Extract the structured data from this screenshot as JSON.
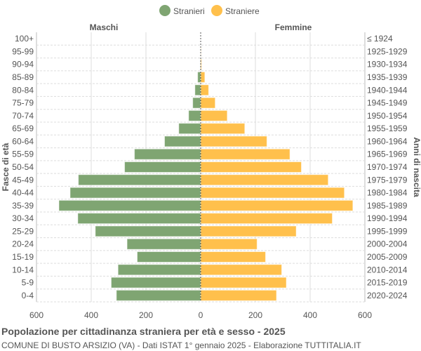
{
  "chart_data": {
    "type": "bar",
    "orientation": "horizontal-pyramid",
    "title": "Popolazione per cittadinanza straniera per età e sesso - 2025",
    "subtitle": "COMUNE DI BUSTO ARSIZIO (VA) - Dati ISTAT 1° gennaio 2025 - Elaborazione TUTTITALIA.IT",
    "ylabel_left": "Fasce di età",
    "ylabel_right": "Anni di nascita",
    "side_labels": [
      "Maschi",
      "Femmine"
    ],
    "categories": [
      "100+",
      "95-99",
      "90-94",
      "85-89",
      "80-84",
      "75-79",
      "70-74",
      "65-69",
      "60-64",
      "55-59",
      "50-54",
      "45-49",
      "40-44",
      "35-39",
      "30-34",
      "25-29",
      "20-24",
      "15-19",
      "10-14",
      "5-9",
      "0-4"
    ],
    "birth_years": [
      "≤ 1924",
      "1925-1929",
      "1930-1934",
      "1935-1939",
      "1940-1944",
      "1945-1949",
      "1950-1954",
      "1955-1959",
      "1960-1964",
      "1965-1969",
      "1970-1974",
      "1975-1979",
      "1980-1984",
      "1985-1989",
      "1990-1994",
      "1995-1999",
      "2000-2004",
      "2005-2009",
      "2010-2014",
      "2015-2019",
      "2020-2024"
    ],
    "series": [
      {
        "name": "Stranieri",
        "color": "#7fa572",
        "values": [
          0,
          0,
          1,
          11,
          21,
          29,
          44,
          80,
          132,
          242,
          278,
          447,
          477,
          518,
          449,
          385,
          269,
          232,
          302,
          327,
          308
        ]
      },
      {
        "name": "Straniere",
        "color": "#ffc04c",
        "values": [
          0,
          1,
          3,
          15,
          29,
          53,
          97,
          161,
          242,
          326,
          368,
          466,
          525,
          556,
          481,
          349,
          206,
          237,
          296,
          313,
          277
        ]
      }
    ],
    "xticks": [
      "600",
      "400",
      "200",
      "0",
      "200",
      "400",
      "600"
    ],
    "xlim": [
      -600,
      600
    ],
    "grid": true,
    "legend": "top-center"
  }
}
